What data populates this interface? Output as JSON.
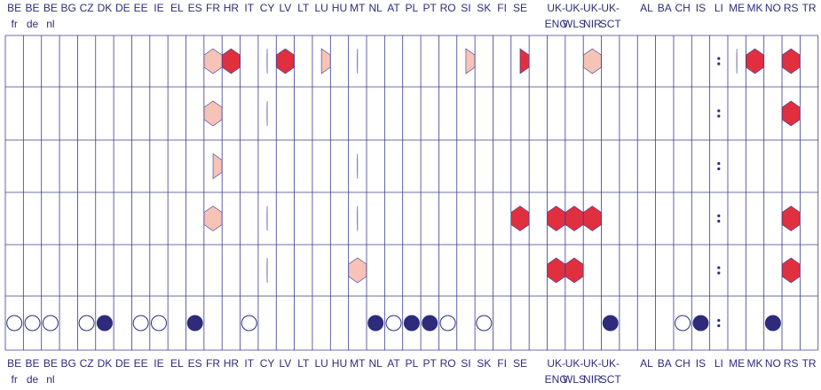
{
  "columns": [
    {
      "top": [
        "BE",
        "fr"
      ],
      "bottom": [
        "BE",
        "fr"
      ]
    },
    {
      "top": [
        "BE",
        "de"
      ],
      "bottom": [
        "BE",
        "de"
      ]
    },
    {
      "top": [
        "BE",
        "nl"
      ],
      "bottom": [
        "BE",
        "nl"
      ]
    },
    {
      "top": [
        "BG"
      ],
      "bottom": [
        "BG"
      ]
    },
    {
      "top": [
        "CZ"
      ],
      "bottom": [
        "CZ"
      ]
    },
    {
      "top": [
        "DK"
      ],
      "bottom": [
        "DK"
      ]
    },
    {
      "top": [
        "DE"
      ],
      "bottom": [
        "DE"
      ]
    },
    {
      "top": [
        "EE"
      ],
      "bottom": [
        "EE"
      ]
    },
    {
      "top": [
        "IE"
      ],
      "bottom": [
        "IE"
      ]
    },
    {
      "top": [
        "EL"
      ],
      "bottom": [
        "EL"
      ]
    },
    {
      "top": [
        "ES"
      ],
      "bottom": [
        "ES"
      ]
    },
    {
      "top": [
        "FR"
      ],
      "bottom": [
        "FR"
      ]
    },
    {
      "top": [
        "HR"
      ],
      "bottom": [
        "HR"
      ]
    },
    {
      "top": [
        "IT"
      ],
      "bottom": [
        "IT"
      ]
    },
    {
      "top": [
        "CY"
      ],
      "bottom": [
        "CY"
      ]
    },
    {
      "top": [
        "LV"
      ],
      "bottom": [
        "LV"
      ]
    },
    {
      "top": [
        "LT"
      ],
      "bottom": [
        "LT"
      ]
    },
    {
      "top": [
        "LU"
      ],
      "bottom": [
        "LU"
      ]
    },
    {
      "top": [
        "HU"
      ],
      "bottom": [
        "HU"
      ]
    },
    {
      "top": [
        "MT"
      ],
      "bottom": [
        "MT"
      ]
    },
    {
      "top": [
        "NL"
      ],
      "bottom": [
        "NL"
      ]
    },
    {
      "top": [
        "AT"
      ],
      "bottom": [
        "AT"
      ]
    },
    {
      "top": [
        "PL"
      ],
      "bottom": [
        "PL"
      ]
    },
    {
      "top": [
        "PT"
      ],
      "bottom": [
        "PT"
      ]
    },
    {
      "top": [
        "RO"
      ],
      "bottom": [
        "RO"
      ]
    },
    {
      "top": [
        "SI"
      ],
      "bottom": [
        "SI"
      ]
    },
    {
      "top": [
        "SK"
      ],
      "bottom": [
        "SK"
      ]
    },
    {
      "top": [
        "FI"
      ],
      "bottom": [
        "FI"
      ]
    },
    {
      "top": [
        "SE"
      ],
      "bottom": [
        "SE"
      ]
    },
    null,
    {
      "top": [
        "UK-",
        "ENG"
      ],
      "bottom": [
        "UK-",
        "ENG"
      ]
    },
    {
      "top": [
        "UK-",
        "WLS"
      ],
      "bottom": [
        "UK-",
        "WLS"
      ]
    },
    {
      "top": [
        "UK-",
        "NIR"
      ],
      "bottom": [
        "UK-",
        "NIR"
      ]
    },
    {
      "top": [
        "UK-",
        "SCT"
      ],
      "bottom": [
        "UK-",
        "SCT"
      ]
    },
    null,
    {
      "top": [
        "AL"
      ],
      "bottom": [
        "AL"
      ]
    },
    {
      "top": [
        "BA"
      ],
      "bottom": [
        "BA"
      ]
    },
    {
      "top": [
        "CH"
      ],
      "bottom": [
        "CH"
      ]
    },
    {
      "top": [
        "IS"
      ],
      "bottom": [
        "IS"
      ]
    },
    {
      "top": [
        "LI"
      ],
      "bottom": [
        "LI"
      ]
    },
    {
      "top": [
        "ME"
      ],
      "bottom": [
        "ME"
      ]
    },
    {
      "top": [
        "MK"
      ],
      "bottom": [
        "MK"
      ]
    },
    {
      "top": [
        "NO"
      ],
      "bottom": [
        "NO"
      ]
    },
    {
      "top": [
        "RS"
      ],
      "bottom": [
        "RS"
      ]
    },
    {
      "top": [
        "TR"
      ],
      "bottom": [
        "TR"
      ]
    }
  ]
}
